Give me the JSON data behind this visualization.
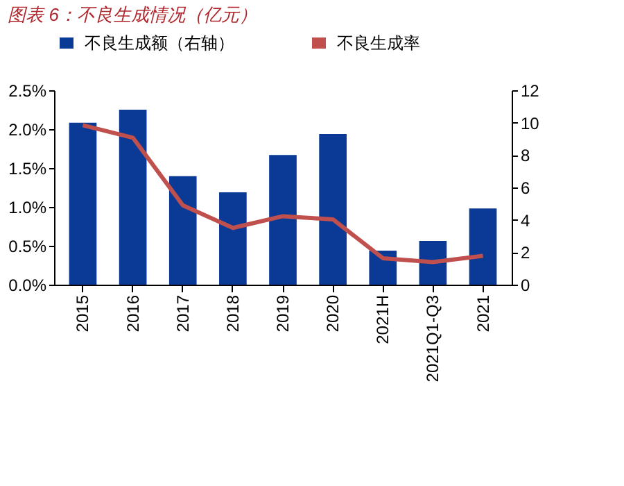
{
  "chart_data": {
    "type": "bar",
    "title": "图表 6：不良生成情况（亿元）",
    "categories": [
      "2015",
      "2016",
      "2017",
      "2018",
      "2019",
      "2020",
      "2021H",
      "2021Q1-Q3",
      "2021"
    ],
    "series": [
      {
        "name": "不良生成额（右轴）",
        "axis": "y2",
        "color": "#0b3a96",
        "values": [
          10.0,
          10.8,
          6.7,
          5.7,
          8.0,
          9.3,
          2.1,
          2.7,
          4.7
        ]
      },
      {
        "name": "不良生成率",
        "type": "line",
        "axis": "y",
        "color": "#c0504d",
        "values": [
          2.05,
          1.89,
          1.02,
          0.73,
          0.88,
          0.84,
          0.34,
          0.29,
          0.37
        ]
      }
    ],
    "ylim": [
      0,
      2.5
    ],
    "yticks": [
      {
        "value": 0,
        "label": "0.0%"
      },
      {
        "value": 0.5,
        "label": "0.5%"
      },
      {
        "value": 1.0,
        "label": "1.0%"
      },
      {
        "value": 1.5,
        "label": "1.5%"
      },
      {
        "value": 2.0,
        "label": "2.0%"
      },
      {
        "value": 2.5,
        "label": "2.5%"
      }
    ],
    "y2lim": [
      0,
      12
    ],
    "y2ticks": [
      0,
      2,
      4,
      6,
      8,
      10,
      12
    ],
    "legend": "top",
    "grid": false,
    "marker": "none",
    "line_style": "solid"
  }
}
